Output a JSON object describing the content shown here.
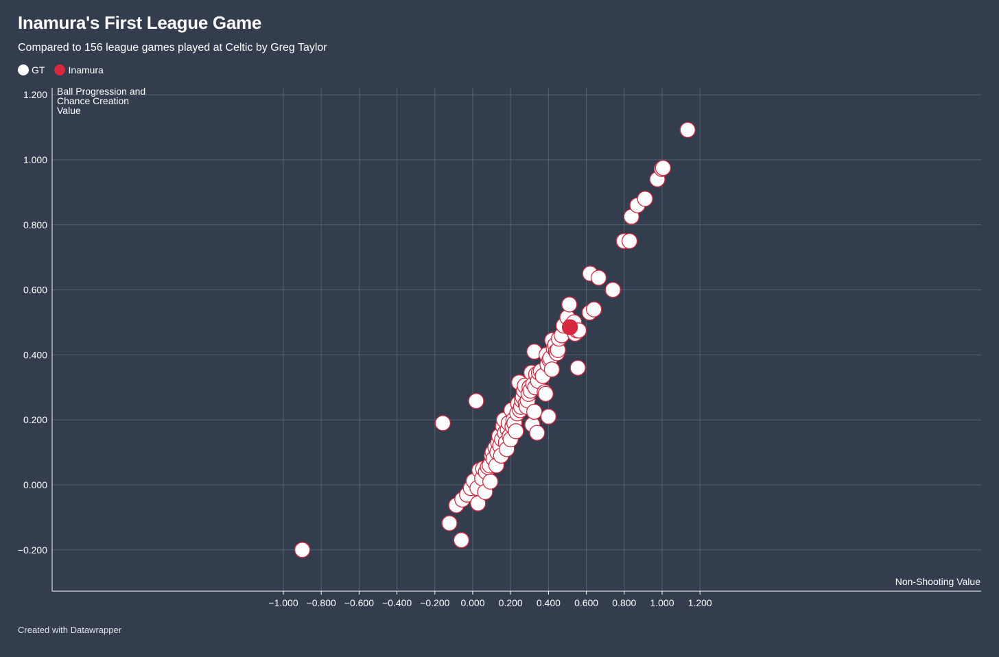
{
  "title": "Inamura's First League Game",
  "subtitle": "Compared to 156 league games played at Celtic by Greg Taylor",
  "footer": "Created with Datawrapper",
  "colors": {
    "background": "#333d4d",
    "gt_fill": "#ffffff",
    "point_stroke": "#d7283f",
    "inamura_fill": "#d7283f",
    "grid": "#56606f",
    "axis": "#ffffff"
  },
  "legend": [
    {
      "label": "GT",
      "color": "#ffffff"
    },
    {
      "label": "Inamura",
      "color": "#d7283f"
    }
  ],
  "chart_data": {
    "type": "scatter",
    "title": "Inamura's First League Game",
    "subtitle": "Compared to 156 league games played at Celtic by Greg Taylor",
    "xlabel": "Non-Shooting Value",
    "ylabel_lines": [
      "Ball Progression and",
      "Chance Creation",
      "Value"
    ],
    "xlim": [
      -1.1,
      1.34
    ],
    "ylim": [
      -0.33,
      1.22
    ],
    "x_ticks": [
      -1.0,
      -0.8,
      -0.6,
      -0.4,
      -0.2,
      0.0,
      0.2,
      0.4,
      0.6,
      0.8,
      1.0,
      1.2
    ],
    "x_tick_labels": [
      "−1.000",
      "−0.800",
      "−0.600",
      "−0.400",
      "−0.200",
      "0.000",
      "0.200",
      "0.400",
      "0.600",
      "0.800",
      "1.000",
      "1.200"
    ],
    "y_ticks": [
      -0.2,
      0.0,
      0.2,
      0.4,
      0.6,
      0.8,
      1.0,
      1.2
    ],
    "y_tick_labels": [
      "−0.200",
      "0.000",
      "0.200",
      "0.400",
      "0.600",
      "0.800",
      "1.000",
      "1.200"
    ],
    "grid": true,
    "legend_position": "top-left",
    "series": [
      {
        "name": "GT",
        "color": "#ffffff",
        "points": [
          [
            -0.9,
            -0.2
          ],
          [
            -0.158,
            0.19
          ],
          [
            -0.123,
            -0.118
          ],
          [
            -0.087,
            -0.063
          ],
          [
            -0.06,
            -0.17
          ],
          [
            -0.055,
            -0.045
          ],
          [
            -0.03,
            -0.03
          ],
          [
            -0.01,
            -0.01
          ],
          [
            0.005,
            0.012
          ],
          [
            0.018,
            0.258
          ],
          [
            0.025,
            -0.01
          ],
          [
            0.028,
            -0.057
          ],
          [
            0.035,
            0.045
          ],
          [
            0.05,
            0.02
          ],
          [
            0.055,
            0.05
          ],
          [
            0.065,
            -0.022
          ],
          [
            0.07,
            0.04
          ],
          [
            0.08,
            0.055
          ],
          [
            0.09,
            0.06
          ],
          [
            0.093,
            0.01
          ],
          [
            0.1,
            0.09
          ],
          [
            0.105,
            0.1
          ],
          [
            0.11,
            0.08
          ],
          [
            0.12,
            0.115
          ],
          [
            0.125,
            0.06
          ],
          [
            0.13,
            0.1
          ],
          [
            0.135,
            0.13
          ],
          [
            0.14,
            0.15
          ],
          [
            0.145,
            0.12
          ],
          [
            0.15,
            0.09
          ],
          [
            0.155,
            0.14
          ],
          [
            0.16,
            0.18
          ],
          [
            0.165,
            0.2
          ],
          [
            0.17,
            0.16
          ],
          [
            0.175,
            0.13
          ],
          [
            0.18,
            0.11
          ],
          [
            0.185,
            0.17
          ],
          [
            0.19,
            0.19
          ],
          [
            0.195,
            0.15
          ],
          [
            0.2,
            0.14
          ],
          [
            0.205,
            0.23
          ],
          [
            0.21,
            0.18
          ],
          [
            0.215,
            0.2
          ],
          [
            0.22,
            0.19
          ],
          [
            0.228,
            0.165
          ],
          [
            0.235,
            0.22
          ],
          [
            0.24,
            0.25
          ],
          [
            0.245,
            0.315
          ],
          [
            0.25,
            0.23
          ],
          [
            0.255,
            0.24
          ],
          [
            0.26,
            0.26
          ],
          [
            0.265,
            0.27
          ],
          [
            0.27,
            0.29
          ],
          [
            0.275,
            0.305
          ],
          [
            0.28,
            0.25
          ],
          [
            0.285,
            0.24
          ],
          [
            0.29,
            0.26
          ],
          [
            0.295,
            0.28
          ],
          [
            0.3,
            0.3
          ],
          [
            0.305,
            0.29
          ],
          [
            0.31,
            0.345
          ],
          [
            0.315,
            0.185
          ],
          [
            0.32,
            0.31
          ],
          [
            0.325,
            0.41
          ],
          [
            0.325,
            0.225
          ],
          [
            0.33,
            0.3
          ],
          [
            0.335,
            0.34
          ],
          [
            0.34,
            0.16
          ],
          [
            0.345,
            0.32
          ],
          [
            0.35,
            0.345
          ],
          [
            0.36,
            0.35
          ],
          [
            0.37,
            0.335
          ],
          [
            0.38,
            0.285
          ],
          [
            0.385,
            0.28
          ],
          [
            0.39,
            0.4
          ],
          [
            0.395,
            0.37
          ],
          [
            0.4,
            0.21
          ],
          [
            0.405,
            0.385
          ],
          [
            0.41,
            0.39
          ],
          [
            0.418,
            0.355
          ],
          [
            0.42,
            0.445
          ],
          [
            0.428,
            0.42
          ],
          [
            0.435,
            0.43
          ],
          [
            0.44,
            0.41
          ],
          [
            0.445,
            0.405
          ],
          [
            0.45,
            0.415
          ],
          [
            0.455,
            0.45
          ],
          [
            0.47,
            0.46
          ],
          [
            0.48,
            0.49
          ],
          [
            0.5,
            0.515
          ],
          [
            0.51,
            0.555
          ],
          [
            0.52,
            0.49
          ],
          [
            0.53,
            0.48
          ],
          [
            0.535,
            0.5
          ],
          [
            0.54,
            0.465
          ],
          [
            0.55,
            0.475
          ],
          [
            0.555,
            0.36
          ],
          [
            0.56,
            0.475
          ],
          [
            0.617,
            0.53
          ],
          [
            0.62,
            0.65
          ],
          [
            0.64,
            0.54
          ],
          [
            0.665,
            0.637
          ],
          [
            0.74,
            0.6
          ],
          [
            0.798,
            0.75
          ],
          [
            0.828,
            0.75
          ],
          [
            0.838,
            0.825
          ],
          [
            0.87,
            0.86
          ],
          [
            0.91,
            0.88
          ],
          [
            0.975,
            0.94
          ],
          [
            0.998,
            0.972
          ],
          [
            1.005,
            0.975
          ],
          [
            1.135,
            1.092
          ]
        ]
      },
      {
        "name": "Inamura",
        "color": "#d7283f",
        "points": [
          [
            0.513,
            0.485
          ]
        ]
      }
    ]
  }
}
